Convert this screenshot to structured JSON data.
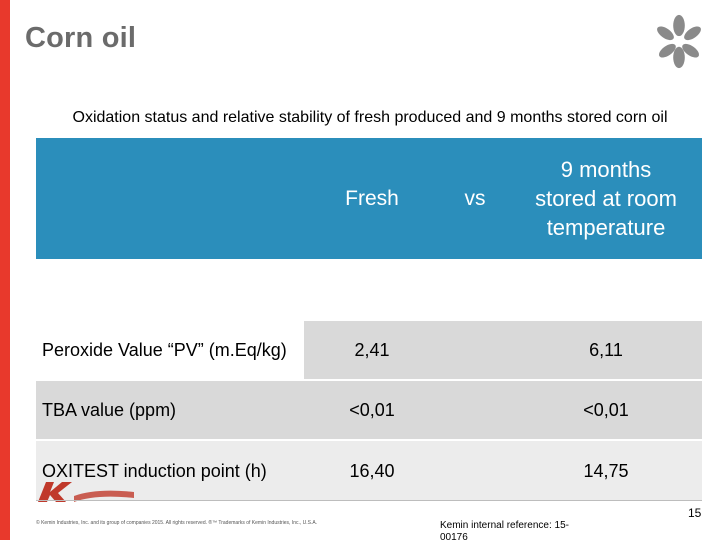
{
  "slide": {
    "title": "Corn oil",
    "subtitle": "Oxidation status and relative stability of fresh produced and 9 months stored corn oil"
  },
  "table": {
    "header": {
      "fresh": "Fresh",
      "vs": "vs",
      "stored": "9 months stored at room temperature"
    },
    "rows": [
      {
        "label": "Peroxide Value “PV” (m.Eq/kg)",
        "fresh": "2,41",
        "stored": "6,11"
      },
      {
        "label": "TBA value  (ppm)",
        "fresh": "<0,01",
        "stored": "<0,01"
      },
      {
        "label": "OXITEST induction point  (h)",
        "fresh": "16,40",
        "stored": "14,75"
      }
    ]
  },
  "footer": {
    "copyright": "© Kemin Industries, Inc. and its group of companies 2015. All rights reserved. ®™ Trademarks of Kemin Industries, Inc., U.S.A.",
    "reference": "Kemin internal reference: 15-00176",
    "page_number": "15"
  },
  "colors": {
    "accent_red": "#e8392c",
    "header_blue": "#2b8ebb",
    "logo_gray": "#8a8a8a"
  }
}
